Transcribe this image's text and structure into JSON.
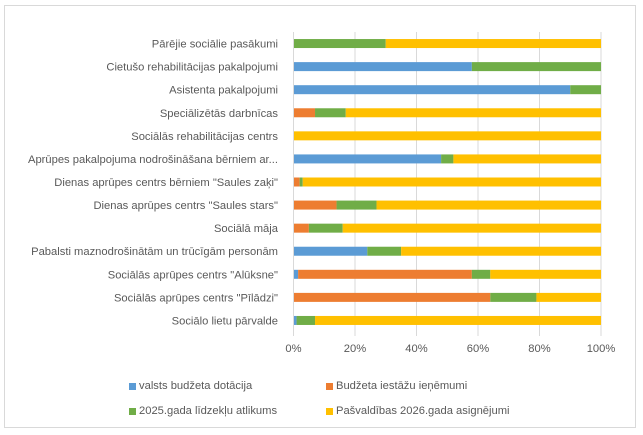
{
  "chart_data": {
    "type": "bar",
    "orientation": "horizontal",
    "stacked": "percent",
    "title": "",
    "xlabel": "",
    "ylabel": "",
    "xlim": [
      0,
      100
    ],
    "x_ticks": [
      "0%",
      "20%",
      "40%",
      "60%",
      "80%",
      "100%"
    ],
    "grid": true,
    "legend_position": "bottom",
    "categories": [
      "Pārējie sociālie pasākumi",
      "Cietušo rehabilitācijas pakalpojumi",
      "Asistenta pakalpojumi",
      "Speciālizētās darbnīcas",
      "Sociālās rehabilitācijas centrs",
      "Aprūpes pakalpojuma nodrošināšana bērniem ar...",
      "Dienas aprūpes centrs bērniem \"Saules zaķi\"",
      "Dienas aprūpes centrs \"Saules stars\"",
      "Sociālā māja",
      "Pabalsti maznodrošinātām un trūcīgām personām",
      "Sociālās aprūpes centrs \"Alūksne\"",
      "Sociālās aprūpes centrs \"Pīlādzi\"",
      "Sociālo lietu pārvalde"
    ],
    "series": [
      {
        "name": "valsts budžeta dotācija",
        "color": "#5B9BD5",
        "values": [
          0,
          58,
          90,
          0,
          0,
          48,
          0,
          0,
          0,
          24,
          1.5,
          0,
          1
        ]
      },
      {
        "name": "Budžeta iestāžu ieņēmumi",
        "color": "#ED7D31",
        "values": [
          0,
          0,
          0,
          7,
          0,
          0,
          2,
          14,
          5,
          0,
          56.5,
          64,
          0
        ]
      },
      {
        "name": "2025.gada līdzekļu atlikums",
        "color": "#70AD47",
        "values": [
          30,
          42,
          10,
          10,
          0,
          4,
          1,
          13,
          11,
          11,
          6,
          15,
          6
        ]
      },
      {
        "name": "Pašvaldības 2026.gada asignējumi",
        "color": "#FFC000",
        "values": [
          70,
          0,
          0,
          83,
          100,
          48,
          97,
          73,
          84,
          65,
          36,
          21,
          93
        ]
      }
    ]
  }
}
